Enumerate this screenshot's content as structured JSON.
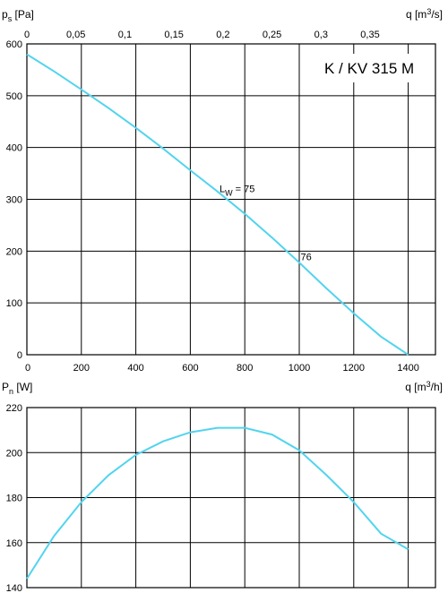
{
  "chart_data": [
    {
      "type": "line",
      "title": "K / KV 315 M",
      "ylabel": {
        "main": "p",
        "sub": "s",
        "unit": "[Pa]"
      },
      "xlabel_top": "q [m³/s]",
      "xlabel_bottom": "q [m³/h]",
      "xlim": [
        0,
        1500
      ],
      "ylim": [
        0,
        600
      ],
      "top_xlim": [
        0,
        0.4167
      ],
      "grid": true,
      "x_ticks": [
        "0",
        "200",
        "400",
        "600",
        "800",
        "1000",
        "1200",
        "1400"
      ],
      "y_ticks": [
        "0",
        "100",
        "200",
        "300",
        "400",
        "500",
        "600"
      ],
      "top_ticks": [
        "0",
        "0,05",
        "0,1",
        "0,15",
        "0,2",
        "0,25",
        "0,3",
        "0,35"
      ],
      "series": [
        {
          "x": [
            0,
            100,
            200,
            300,
            400,
            500,
            600,
            700,
            800,
            900,
            1000,
            1100,
            1200,
            1300,
            1400
          ],
          "y": [
            580,
            547,
            512,
            476,
            438,
            398,
            356,
            315,
            272,
            226,
            178,
            128,
            80,
            35,
            0
          ]
        }
      ],
      "annotations": [
        {
          "main": "L",
          "sub": "W",
          "text": " = 75",
          "x": 740,
          "y": 310
        },
        {
          "text": "76",
          "x": 1005,
          "y": 182
        }
      ]
    },
    {
      "type": "line",
      "ylabel": {
        "main": "P",
        "sub": "n",
        "unit": "[W]"
      },
      "xlim": [
        0,
        1500
      ],
      "ylim": [
        140,
        220
      ],
      "grid": true,
      "y_ticks": [
        "140",
        "160",
        "180",
        "200",
        "220"
      ],
      "series": [
        {
          "x": [
            0,
            100,
            200,
            300,
            400,
            500,
            600,
            700,
            800,
            900,
            1000,
            1100,
            1200,
            1300,
            1400
          ],
          "y": [
            144,
            163,
            178,
            190,
            199,
            205,
            209,
            211,
            211,
            208,
            201,
            190,
            178,
            164,
            157
          ]
        }
      ]
    }
  ]
}
